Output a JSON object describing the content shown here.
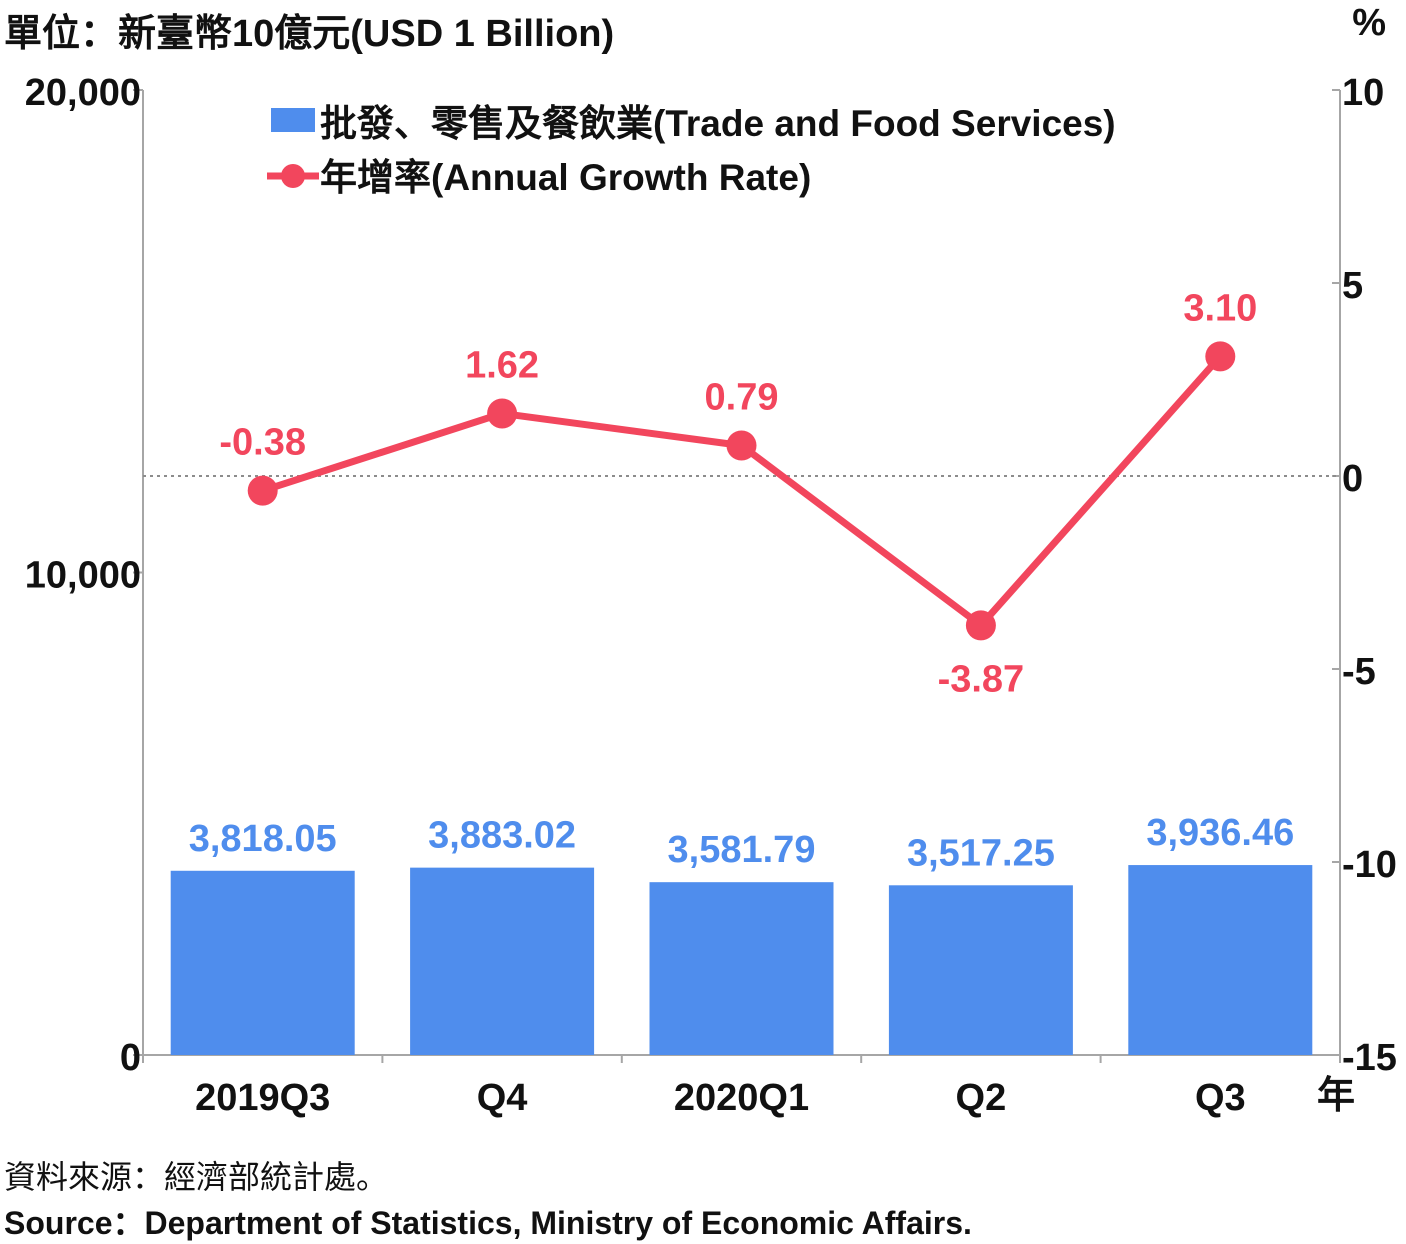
{
  "header": {
    "left_unit": "單位：新臺幣10億元(USD 1 Billion)",
    "right_unit": "%"
  },
  "footer": {
    "source_zh": "資料來源：經濟部統計處。",
    "source_en": "Source：Department of Statistics, Ministry of Economic Affairs."
  },
  "colors": {
    "bar": "#4f8ded",
    "line": "#f2465d",
    "axis": "#a6a6a6",
    "text": "#111111"
  },
  "chart_data": {
    "type": "bar",
    "categories": [
      "2019Q3",
      "Q4",
      "2020Q1",
      "Q2",
      "Q3"
    ],
    "x_unit_label": "年",
    "series": [
      {
        "name": "批發、零售及餐飲業(Trade and Food Services)",
        "type": "bar",
        "axis": "left",
        "values": [
          3818.05,
          3883.02,
          3581.79,
          3517.25,
          3936.46
        ],
        "labels": [
          "3,818.05",
          "3,883.02",
          "3,581.79",
          "3,517.25",
          "3,936.46"
        ]
      },
      {
        "name": "年增率(Annual Growth Rate)",
        "type": "line",
        "axis": "right",
        "values": [
          -0.38,
          1.62,
          0.79,
          -3.87,
          3.1
        ],
        "labels": [
          "-0.38",
          "1.62",
          "0.79",
          "-3.87",
          "3.10"
        ]
      }
    ],
    "left_axis": {
      "ylim": [
        0,
        20000
      ],
      "ticks": [
        0,
        10000,
        20000
      ],
      "tick_labels": [
        "0",
        "10,000",
        "20,000"
      ]
    },
    "right_axis": {
      "ylim": [
        -15,
        10
      ],
      "ticks": [
        -15,
        -10,
        -5,
        0,
        5,
        10
      ],
      "tick_labels": [
        "-15",
        "-10",
        "-5",
        "0",
        "5",
        "10"
      ]
    },
    "zero_reference_line": true,
    "legend_position": "top-center"
  }
}
